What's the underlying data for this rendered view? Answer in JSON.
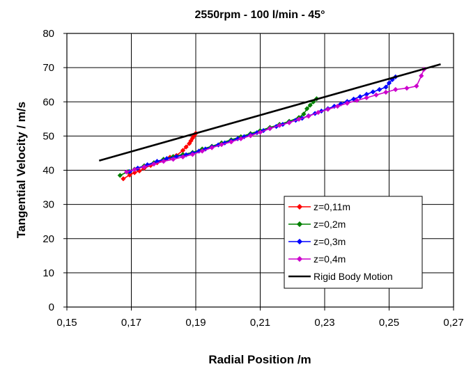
{
  "chart_data": {
    "type": "scatter",
    "title": "2550rpm - 100 l/min - 45°",
    "xlabel": "Radial Position /m",
    "ylabel": "Tangential Velocity / m/s",
    "xlim": [
      0.15,
      0.27
    ],
    "ylim": [
      0,
      80
    ],
    "xticks": [
      0.15,
      0.17,
      0.19,
      0.21,
      0.23,
      0.25,
      0.27
    ],
    "xtick_labels": [
      "0,15",
      "0,17",
      "0,19",
      "0,21",
      "0,23",
      "0,25",
      "0,27"
    ],
    "yticks": [
      0,
      10,
      20,
      30,
      40,
      50,
      60,
      70,
      80
    ],
    "ytick_labels": [
      "0",
      "10",
      "20",
      "30",
      "40",
      "50",
      "60",
      "70",
      "80"
    ],
    "grid": true,
    "legend_position": "bottom-right",
    "series": [
      {
        "name": "z=0,11m",
        "color": "#ff0000",
        "marker": "diamond",
        "x": [
          0.1675,
          0.1695,
          0.171,
          0.1725,
          0.174,
          0.176,
          0.178,
          0.18,
          0.182,
          0.184,
          0.186,
          0.187,
          0.188,
          0.1885,
          0.189,
          0.1895,
          0.19
        ],
        "y": [
          37.5,
          38.6,
          39.3,
          39.8,
          40.6,
          41.4,
          42.2,
          43.0,
          43.8,
          44.3,
          45.8,
          46.8,
          47.8,
          48.6,
          49.4,
          50.1,
          50.8
        ]
      },
      {
        "name": "z=0,2m",
        "color": "#008000",
        "marker": "diamond",
        "x": [
          0.1665,
          0.169,
          0.171,
          0.174,
          0.177,
          0.18,
          0.183,
          0.186,
          0.189,
          0.192,
          0.195,
          0.198,
          0.201,
          0.204,
          0.207,
          0.21,
          0.213,
          0.216,
          0.219,
          0.222,
          0.2235,
          0.2245,
          0.2255,
          0.2265,
          0.2275
        ],
        "y": [
          38.5,
          39.6,
          40.3,
          41.3,
          42.2,
          43.2,
          44.0,
          44.6,
          45.2,
          46.2,
          47.0,
          48.0,
          48.9,
          49.8,
          50.7,
          51.6,
          52.5,
          53.4,
          54.3,
          55.4,
          56.4,
          58.0,
          59.0,
          60.0,
          60.9
        ]
      },
      {
        "name": "z=0,3m",
        "color": "#0000ff",
        "marker": "diamond",
        "x": [
          0.1695,
          0.172,
          0.175,
          0.178,
          0.181,
          0.184,
          0.187,
          0.189,
          0.191,
          0.193,
          0.195,
          0.197,
          0.199,
          0.201,
          0.203,
          0.205,
          0.207,
          0.209,
          0.211,
          0.213,
          0.215,
          0.217,
          0.219,
          0.221,
          0.223,
          0.225,
          0.227,
          0.229,
          0.231,
          0.233,
          0.235,
          0.237,
          0.239,
          0.241,
          0.243,
          0.245,
          0.247,
          0.249,
          0.25,
          0.251,
          0.252
        ],
        "y": [
          39.6,
          40.6,
          41.6,
          42.6,
          43.4,
          44.0,
          44.5,
          45.0,
          45.6,
          46.2,
          46.8,
          47.4,
          48.0,
          48.6,
          49.2,
          49.8,
          50.4,
          51.0,
          51.6,
          52.2,
          52.8,
          53.4,
          54.0,
          54.6,
          55.2,
          55.9,
          56.6,
          57.3,
          58.0,
          58.7,
          59.4,
          60.1,
          60.8,
          61.5,
          62.2,
          62.9,
          63.6,
          64.3,
          65.5,
          66.5,
          67.3
        ]
      },
      {
        "name": "z=0,4m",
        "color": "#cc00cc",
        "marker": "diamond",
        "x": [
          0.1685,
          0.171,
          0.174,
          0.177,
          0.18,
          0.183,
          0.186,
          0.189,
          0.192,
          0.195,
          0.198,
          0.201,
          0.204,
          0.207,
          0.21,
          0.213,
          0.216,
          0.219,
          0.222,
          0.225,
          0.228,
          0.231,
          0.234,
          0.237,
          0.24,
          0.243,
          0.246,
          0.249,
          0.252,
          0.2555,
          0.2585,
          0.26,
          0.2608
        ],
        "y": [
          39.5,
          40.2,
          41.0,
          41.8,
          42.6,
          43.2,
          43.9,
          44.6,
          45.6,
          46.6,
          47.5,
          48.3,
          49.2,
          50.1,
          51.1,
          52.2,
          53.1,
          53.9,
          54.9,
          55.8,
          56.9,
          57.8,
          58.7,
          59.6,
          60.4,
          61.2,
          62.0,
          62.8,
          63.6,
          64.0,
          64.6,
          67.6,
          69.5
        ]
      },
      {
        "name": "Rigid Body Motion",
        "color": "#000000",
        "marker": "none",
        "x": [
          0.16,
          0.266
        ],
        "y": [
          42.8,
          71.0
        ]
      }
    ]
  }
}
